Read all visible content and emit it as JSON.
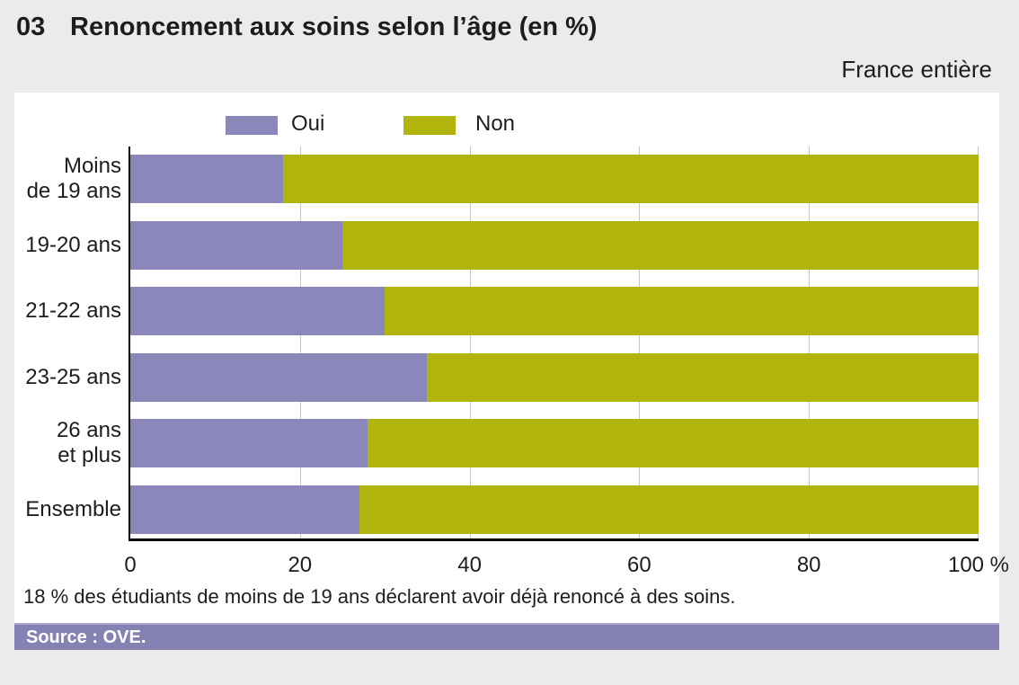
{
  "header": {
    "number": "03",
    "title": "Renoncement aux soins selon l’âge (en %)",
    "region": "France entière"
  },
  "chart_data": {
    "type": "bar",
    "orientation": "horizontal",
    "stacked": true,
    "title": "Renoncement aux soins selon l’âge (en %)",
    "categories": [
      "Moins\nde 19 ans",
      "19-20 ans",
      "21-22 ans",
      "23-25 ans",
      "26 ans\net plus",
      "Ensemble"
    ],
    "series": [
      {
        "name": "Oui",
        "color": "#8b87ba",
        "values": [
          18,
          25,
          30,
          35,
          28,
          27
        ]
      },
      {
        "name": "Non",
        "color": "#b2b40e",
        "values": [
          82,
          75,
          70,
          65,
          72,
          73
        ]
      }
    ],
    "xlim": [
      0,
      100
    ],
    "x_ticks": [
      "0",
      "20",
      "40",
      "60",
      "80",
      "100 %"
    ],
    "x_tick_percents": [
      0,
      20,
      40,
      60,
      80,
      100
    ],
    "grid": true,
    "legend_position": "top"
  },
  "caption": "18 % des étudiants de moins de 19 ans déclarent avoir déjà renoncé à des soins.",
  "source": "Source : OVE.",
  "colors": {
    "background": "#ebebeb",
    "panel": "#ffffff",
    "oui": "#8b87ba",
    "non": "#b2b40e",
    "source_bar": "#8581b2",
    "gridline": "#c5c5c5"
  }
}
